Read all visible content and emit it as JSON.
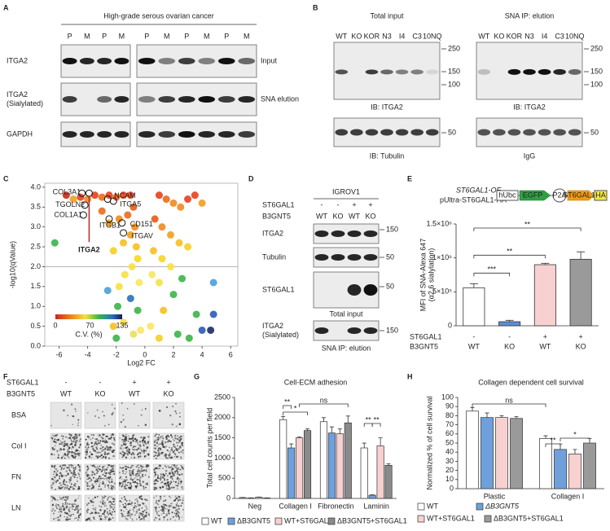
{
  "panels": {
    "letters": [
      "A",
      "B",
      "C",
      "D",
      "E",
      "F",
      "G",
      "H"
    ],
    "a": {
      "title": "High-grade serous ovarian cancer",
      "lanes_left": [
        "P",
        "M",
        "P",
        "M"
      ],
      "lanes_right": [
        "P",
        "M",
        "P",
        "M",
        "P",
        "M"
      ],
      "rows": [
        [
          "ITGA2"
        ],
        [
          "ITGA2",
          "(Sialylated)"
        ],
        [
          "GAPDH"
        ]
      ],
      "side_labels": [
        "Input",
        "SNA elution"
      ]
    },
    "b": {
      "groups": [
        "Total input",
        "SNA IP: elution"
      ],
      "lanes": [
        "WT",
        "KO",
        "KOR",
        "N3",
        "I4",
        "C3",
        "10NQ"
      ],
      "markers_top": [
        250,
        150,
        100
      ],
      "marker_bottom": 50,
      "captions": [
        "IB: ITGA2",
        "IB: Tubulin",
        "IB: ITGA2",
        "IgG"
      ]
    },
    "d": {
      "cell_line": "IGROV1",
      "factors": [
        "ST6GAL1",
        "B3GNT5"
      ],
      "conditions": [
        [
          "-",
          "-",
          "+",
          "+"
        ],
        [
          "WT",
          "KO",
          "WT",
          "KO"
        ]
      ],
      "rows": [
        [
          "ITGA2"
        ],
        [
          "Tubulin"
        ],
        [
          "ST6GAL1"
        ],
        [
          "ITGA2",
          "(Sialylated)"
        ]
      ],
      "markers": [
        150,
        50,
        50,
        150
      ],
      "captions": [
        "Total input",
        "SNA IP: elution"
      ]
    },
    "e": {
      "construct": [
        "ST6GAL1-OE",
        "pUltra-ST6GAL1-HA"
      ],
      "elements": [
        "hUbc",
        "EGFP",
        "P2A",
        "ST6GAL1",
        "HA"
      ]
    },
    "f": {
      "factors": [
        "ST6GAL1",
        "B3GNT5"
      ],
      "conditions": [
        [
          "-",
          "-",
          "+",
          "+"
        ],
        [
          "WT",
          "KO",
          "WT",
          "KO"
        ]
      ],
      "rows": [
        "BSA",
        "Col I",
        "FN",
        "LN"
      ]
    }
  },
  "chart_data": [
    {
      "type": "scatter",
      "xlabel": "Log2 FC",
      "ylabel": "-log10(qValue)",
      "x": [
        -1.0,
        -1.5,
        -2,
        -2.5,
        -3,
        -3.5,
        -4,
        -4.5,
        -5,
        -5.5,
        -0.8,
        -1.2,
        -1.8,
        -2.5,
        -3,
        -0.7,
        -1.0,
        -1.5,
        -0.6,
        -2.2,
        -0.5,
        -0.9,
        -1.4,
        -0.4,
        -1.8,
        -6.3,
        -2.6,
        -1.0,
        -1.9,
        -0.5,
        -1.5,
        -2.2,
        -0.3,
        -0.8,
        -2.0,
        1.0,
        1.5,
        2,
        2.5,
        3,
        3.5,
        4,
        0.7,
        1.2,
        1.8,
        2.4,
        3.0,
        0.6,
        1.2,
        1.8,
        0.5,
        1.0,
        2.6,
        4.8,
        2.0,
        3.6,
        4.8,
        1.3,
        0.4,
        2.3,
        4.0,
        4.6,
        1.0,
        3.1
      ],
      "values": [
        3.8,
        3.8,
        3.75,
        3.8,
        3.75,
        3.8,
        3.7,
        3.75,
        3.7,
        3.8,
        3.5,
        3.3,
        3.2,
        3.1,
        3.4,
        3.0,
        2.8,
        2.6,
        2.5,
        2.4,
        2.2,
        2.0,
        1.8,
        1.6,
        1.5,
        2.6,
        1.4,
        1.2,
        1.0,
        0.9,
        0.6,
        0.5,
        0.4,
        0.3,
        0.2,
        3.8,
        3.7,
        3.6,
        3.5,
        3.7,
        3.8,
        3.6,
        3.2,
        3.0,
        2.8,
        2.6,
        2.5,
        2.4,
        2.2,
        2.0,
        1.8,
        1.6,
        1.7,
        1.6,
        1.3,
        0.8,
        0.8,
        0.9,
        0.5,
        0.3,
        0.4,
        0.4,
        0.2,
        0.2
      ],
      "colors": [
        "#e8401c",
        "#e8401c",
        "#e65a1a",
        "#e8401c",
        "#ec6a1c",
        "#e8401c",
        "#f08a20",
        "#e8401c",
        "#f0a020",
        "#c62a18",
        "#e65a1a",
        "#ec6a1c",
        "#f08a20",
        "#f0a020",
        "#ec6a1c",
        "#f08a20",
        "#f0a020",
        "#f5c020",
        "#f5c020",
        "#f5d020",
        "#f5d820",
        "#f7e040",
        "#f7e040",
        "#f7e860",
        "#f7e040",
        "#3cb44a",
        "#4aa0d8",
        "#2a70c0",
        "#3cb44a",
        "#3cb44a",
        "#f7e040",
        "#f5c020",
        "#f7e860",
        "#e8e060",
        "#3cb44a",
        "#e8401c",
        "#ec6a1c",
        "#f08a20",
        "#f08a20",
        "#e8401c",
        "#e8401c",
        "#f0a020",
        "#e65a1a",
        "#f08a20",
        "#f0a020",
        "#f5c020",
        "#f5d020",
        "#f5c020",
        "#f5d820",
        "#f7e040",
        "#f7e860",
        "#f7e040",
        "#3cb44a",
        "#4aa0d8",
        "#3cb44a",
        "#3cb44a",
        "#2a5ab8",
        "#f5c020",
        "#f7e860",
        "#3cb44a",
        "#2a5ab8",
        "#1a2a6c",
        "#f5d020",
        "#3cb44a"
      ],
      "xlim": [
        -7,
        6.5
      ],
      "ylim": [
        0,
        4.1
      ],
      "xticks": [
        -6,
        -4,
        -2,
        0,
        2,
        4,
        6
      ],
      "yticks": [
        {
          "value": 0,
          "label": "0.0"
        },
        {
          "value": 0.5,
          "label": "0.5"
        },
        {
          "value": 1,
          "label": "1.0"
        },
        {
          "value": 1.5,
          "label": "1.5"
        },
        {
          "value": 2,
          "label": "2.0"
        },
        {
          "value": 2.5,
          "label": "2.5"
        },
        {
          "value": 3,
          "label": "3.0"
        },
        {
          "value": 3.5,
          "label": "3.5"
        },
        {
          "value": 4,
          "label": "4.0"
        }
      ],
      "threshold_y": 2,
      "annotations": [
        {
          "text": "COL3A1",
          "x": -4.4,
          "y": 3.85
        },
        {
          "text": "TGOLN2",
          "x": -4.2,
          "y": 3.55
        },
        {
          "text": "COL1A1",
          "x": -4.3,
          "y": 3.3
        },
        {
          "text": "NCAM",
          "x": -2.6,
          "y": 3.7
        },
        {
          "text": "ITGA5",
          "x": -2.2,
          "y": 3.65
        },
        {
          "text": "ITGB1",
          "x": -2.5,
          "y": 3.2
        },
        {
          "text": "CD151",
          "x": -1.6,
          "y": 3.1
        },
        {
          "text": "ITGAV",
          "x": -1.5,
          "y": 2.85
        },
        {
          "text": "ITGA2",
          "x": -3.9,
          "y": 3.85
        }
      ],
      "colorbar": {
        "ticks": [
          0,
          70,
          135
        ],
        "label": "C.V. (%)"
      }
    },
    {
      "type": "bar",
      "ylabel": [
        "MFI of SNA-Alexa 647",
        "(α2,6 sialylation)"
      ],
      "values": [
        560000,
        60000,
        900000,
        980000
      ],
      "errors": [
        60000,
        20000,
        20000,
        110000
      ],
      "colors": [
        "#ffffff",
        "#5b8fd6",
        "#f9d0d0",
        "#9a9a9a"
      ],
      "ylim": [
        0,
        1500000
      ],
      "yticks": [
        0,
        {
          "value": 500000,
          "label": "5×10⁵"
        },
        {
          "value": 1000000,
          "label": "1×10⁶"
        },
        {
          "value": 1500000,
          "label": "1.5×10⁶"
        }
      ],
      "significance": [
        "***",
        "**",
        "**"
      ],
      "row_labels": [
        "ST6GAL1",
        "B3GNT5"
      ],
      "rows": [
        [
          "-",
          "-",
          "+",
          "+"
        ],
        [
          "WT",
          "KO",
          "WT",
          "KO"
        ]
      ]
    },
    {
      "type": "bar",
      "title": "Cell-ECM adhesion",
      "ylabel": "Total cell counts per field",
      "categories": [
        "Neg",
        "Collagen I",
        "Fibronectin",
        "Laminin"
      ],
      "series": [
        {
          "name": "WT",
          "color": "#ffffff",
          "values": [
            20,
            1950,
            1900,
            1250
          ],
          "errors": [
            5,
            80,
            100,
            120
          ]
        },
        {
          "name": "ΔB3GNT5",
          "color": "#6fa0dc",
          "values": [
            10,
            1250,
            1620,
            80
          ],
          "errors": [
            5,
            100,
            150,
            10
          ]
        },
        {
          "name": "WT+ST6GAL1",
          "color": "#f9d0d0",
          "values": [
            30,
            1500,
            1600,
            1300
          ],
          "errors": [
            5,
            20,
            120,
            200
          ]
        },
        {
          "name": "ΔB3GNT5+ST6GAL1",
          "color": "#8a8a8a",
          "values": [
            10,
            1680,
            1870,
            820
          ],
          "errors": [
            5,
            40,
            170,
            40
          ]
        }
      ],
      "ylim": [
        0,
        2500
      ],
      "yticks": [
        0,
        500,
        1000,
        1500,
        2000,
        2500
      ],
      "significance": [
        "**",
        "*",
        "ns",
        "**",
        "**"
      ]
    },
    {
      "type": "bar",
      "title": "Collagen dependent cell survival",
      "ylabel": "Normalized % of cell survival",
      "categories": [
        "Plastic",
        "Collagen I"
      ],
      "series": [
        {
          "name": "WT",
          "color": "#ffffff",
          "values": [
            85,
            55
          ],
          "errors": [
            4,
            3
          ]
        },
        {
          "name": "ΔB3GNT5",
          "color": "#6fa0dc",
          "values": [
            78,
            43
          ],
          "errors": [
            5,
            6
          ]
        },
        {
          "name": "WT+ST6GAL1",
          "color": "#f9d0d0",
          "values": [
            78,
            38
          ],
          "errors": [
            2,
            5
          ]
        },
        {
          "name": "ΔB3GNT5+ST6GAL1",
          "color": "#9a9a9a",
          "values": [
            77,
            50
          ],
          "errors": [
            2,
            5
          ]
        }
      ],
      "ylim": [
        0,
        100
      ],
      "yticks": [
        0,
        10,
        20,
        30,
        40,
        50,
        60,
        70,
        80,
        90,
        100
      ],
      "significance": [
        "ns",
        "**",
        "*"
      ]
    }
  ]
}
